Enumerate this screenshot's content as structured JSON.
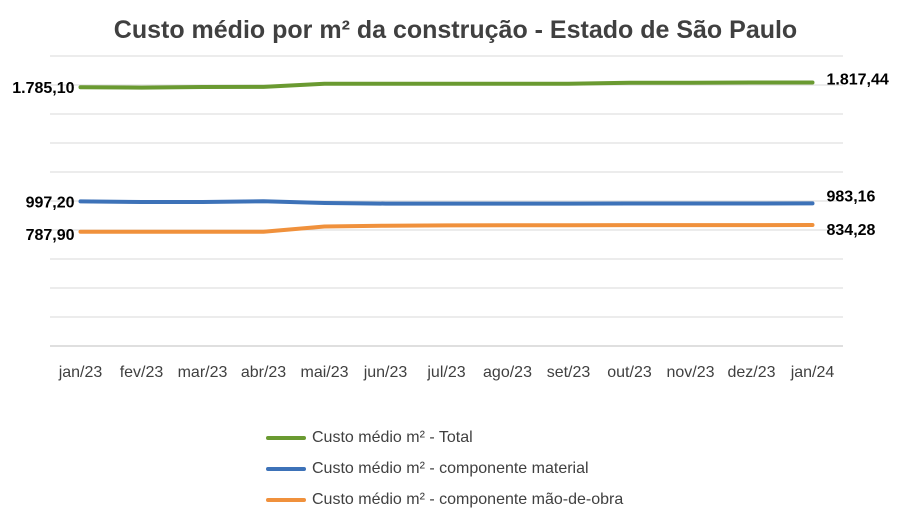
{
  "chart_data": {
    "type": "line",
    "title": "Custo médio por m² da construção - Estado de São Paulo",
    "categories": [
      "jan/23",
      "fev/23",
      "mar/23",
      "abr/23",
      "mai/23",
      "jun/23",
      "jul/23",
      "ago/23",
      "set/23",
      "out/23",
      "nov/23",
      "dez/23",
      "jan/24"
    ],
    "series": [
      {
        "name": "Custo médio m² - Total",
        "color": "#6a9a31",
        "values": [
          1785.1,
          1782,
          1786,
          1787,
          1808,
          1809,
          1809,
          1809,
          1809,
          1816,
          1816,
          1817,
          1817.44
        ],
        "labels": {
          "first": "1.785,10",
          "last": "1.817,44"
        }
      },
      {
        "name": "Custo médio m² - componente material",
        "color": "#3d72b8",
        "values": [
          997.2,
          993,
          993,
          998,
          986,
          982,
          982,
          982,
          982,
          983,
          983,
          983,
          983.16
        ],
        "labels": {
          "first": "997,20",
          "last": "983,16"
        }
      },
      {
        "name": "Custo médio m² - componente mão-de-obra",
        "color": "#f0913c",
        "values": [
          787.9,
          787.9,
          787.9,
          787.9,
          824,
          830,
          832,
          833,
          833,
          834,
          834,
          834,
          834.28
        ],
        "labels": {
          "first": "787,90",
          "last": "834,28"
        }
      }
    ],
    "ylim": [
      0,
      2000
    ],
    "grid": true,
    "legend_position": "bottom"
  }
}
